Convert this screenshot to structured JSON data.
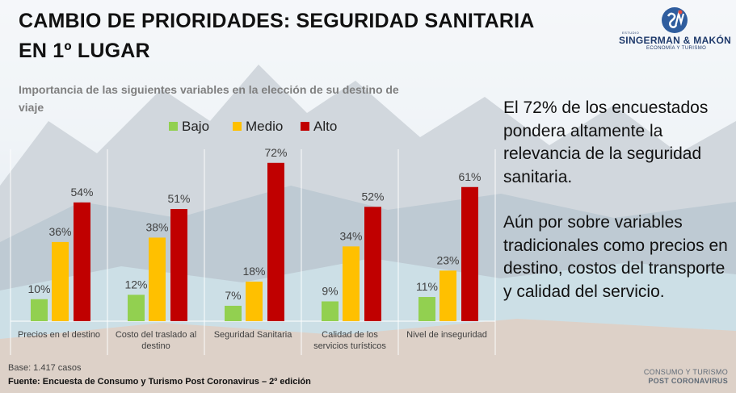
{
  "title": {
    "line1": "CAMBIO DE PRIORIDADES: SEGURIDAD SANITARIA",
    "line2": "EN 1º LUGAR"
  },
  "logo": {
    "small": "ESTUDIO",
    "name": "SINGERMAN & MAKÓN",
    "sub": "ECONOMÍA Y TURISMO"
  },
  "chart_title": {
    "line1": "Importancia de las siguientes variables en la elección de su destino de",
    "line2": "viaje"
  },
  "side_text": {
    "para1": "El 72% de los encuestados pondera altamente la relevancia de la seguridad sanitaria.",
    "para2": "Aún por sobre variables tradicionales como precios en destino, costos del transporte y calidad del servicio."
  },
  "footer": {
    "base": "Base: 1.417 casos",
    "source": "Fuente: Encuesta de Consumo y Turismo Post Coronavirus – 2º edición",
    "brand_line1": "CONSUMO Y TURISMO",
    "brand_line2": "POST CORONAVIRUS"
  },
  "colors": {
    "bajo": "#92d050",
    "medio": "#ffc000",
    "alto": "#c00000"
  },
  "chart_data": {
    "type": "bar",
    "title": "Importancia de las siguientes variables en la elección de su destino de viaje",
    "categories": [
      [
        "Precios en el destino"
      ],
      [
        "Costo del traslado al",
        "destino"
      ],
      [
        "Seguridad Sanitaria"
      ],
      [
        "Calidad de los",
        "servicios turísticos"
      ],
      [
        "Nivel de inseguridad"
      ]
    ],
    "series": [
      {
        "name": "Bajo",
        "values": [
          10,
          12,
          7,
          9,
          11
        ],
        "labels": [
          "10%",
          "12%",
          "7%",
          "9%",
          "11%"
        ]
      },
      {
        "name": "Medio",
        "values": [
          36,
          38,
          18,
          34,
          23
        ],
        "labels": [
          "36%",
          "38%",
          "18%",
          "34%",
          "23%"
        ]
      },
      {
        "name": "Alto",
        "values": [
          54,
          51,
          72,
          52,
          61
        ],
        "labels": [
          "54%",
          "51%",
          "72%",
          "52%",
          "61%"
        ]
      }
    ],
    "ylim": [
      0,
      80
    ],
    "legend": "top",
    "grid": false
  }
}
